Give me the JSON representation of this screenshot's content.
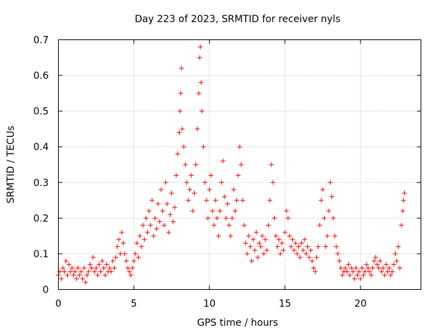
{
  "chart_data": {
    "type": "scatter",
    "title": "Day 223 of 2023, SRMTID for receiver nyls",
    "xlabel": "GPS time / hours",
    "ylabel": "SRMTID / TECUs",
    "xlim": [
      0,
      24
    ],
    "ylim": [
      0,
      0.7
    ],
    "xticks": [
      0,
      5,
      10,
      15,
      20
    ],
    "yticks": [
      0,
      0.1,
      0.2,
      0.3,
      0.4,
      0.5,
      0.6,
      0.7
    ],
    "xtick_labels": [
      "0",
      "5",
      "10",
      "15",
      "20"
    ],
    "ytick_labels": [
      "0",
      "0.1",
      "0.2",
      "0.3",
      "0.4",
      "0.5",
      "0.6",
      "0.7"
    ],
    "grid": true,
    "marker": "+",
    "marker_color": "#ff0000",
    "series": [
      {
        "name": "SRMTID",
        "points": [
          [
            0.0,
            0.04
          ],
          [
            0.1,
            0.05
          ],
          [
            0.2,
            0.03
          ],
          [
            0.3,
            0.06
          ],
          [
            0.4,
            0.05
          ],
          [
            0.5,
            0.08
          ],
          [
            0.6,
            0.04
          ],
          [
            0.7,
            0.07
          ],
          [
            0.8,
            0.05
          ],
          [
            0.9,
            0.06
          ],
          [
            1.0,
            0.04
          ],
          [
            1.1,
            0.05
          ],
          [
            1.2,
            0.03
          ],
          [
            1.3,
            0.06
          ],
          [
            1.4,
            0.04
          ],
          [
            1.5,
            0.05
          ],
          [
            1.6,
            0.03
          ],
          [
            1.7,
            0.06
          ],
          [
            1.8,
            0.02
          ],
          [
            1.9,
            0.04
          ],
          [
            2.0,
            0.05
          ],
          [
            2.1,
            0.07
          ],
          [
            2.2,
            0.06
          ],
          [
            2.3,
            0.09
          ],
          [
            2.4,
            0.05
          ],
          [
            2.5,
            0.06
          ],
          [
            2.6,
            0.04
          ],
          [
            2.7,
            0.07
          ],
          [
            2.8,
            0.05
          ],
          [
            2.9,
            0.08
          ],
          [
            3.0,
            0.06
          ],
          [
            3.1,
            0.04
          ],
          [
            3.2,
            0.07
          ],
          [
            3.3,
            0.05
          ],
          [
            3.4,
            0.06
          ],
          [
            3.5,
            0.05
          ],
          [
            3.6,
            0.08
          ],
          [
            3.7,
            0.06
          ],
          [
            3.8,
            0.09
          ],
          [
            3.9,
            0.12
          ],
          [
            4.0,
            0.14
          ],
          [
            4.1,
            0.1
          ],
          [
            4.2,
            0.16
          ],
          [
            4.3,
            0.13
          ],
          [
            4.4,
            0.1
          ],
          [
            4.5,
            0.08
          ],
          [
            4.6,
            0.06
          ],
          [
            4.7,
            0.05
          ],
          [
            4.8,
            0.04
          ],
          [
            4.9,
            0.06
          ],
          [
            5.0,
            0.08
          ],
          [
            5.1,
            0.1
          ],
          [
            5.2,
            0.13
          ],
          [
            5.3,
            0.09
          ],
          [
            5.4,
            0.15
          ],
          [
            5.5,
            0.12
          ],
          [
            5.6,
            0.18
          ],
          [
            5.7,
            0.14
          ],
          [
            5.8,
            0.2
          ],
          [
            5.9,
            0.16
          ],
          [
            6.0,
            0.22
          ],
          [
            6.1,
            0.18
          ],
          [
            6.2,
            0.25
          ],
          [
            6.3,
            0.15
          ],
          [
            6.4,
            0.2
          ],
          [
            6.5,
            0.17
          ],
          [
            6.6,
            0.24
          ],
          [
            6.7,
            0.19
          ],
          [
            6.8,
            0.28
          ],
          [
            6.9,
            0.22
          ],
          [
            7.0,
            0.18
          ],
          [
            7.1,
            0.3
          ],
          [
            7.2,
            0.24
          ],
          [
            7.3,
            0.16
          ],
          [
            7.4,
            0.21
          ],
          [
            7.5,
            0.27
          ],
          [
            7.6,
            0.19
          ],
          [
            7.7,
            0.23
          ],
          [
            7.8,
            0.32
          ],
          [
            7.9,
            0.38
          ],
          [
            8.0,
            0.44
          ],
          [
            8.05,
            0.5
          ],
          [
            8.1,
            0.55
          ],
          [
            8.15,
            0.62
          ],
          [
            8.2,
            0.45
          ],
          [
            8.3,
            0.4
          ],
          [
            8.4,
            0.35
          ],
          [
            8.5,
            0.3
          ],
          [
            8.6,
            0.25
          ],
          [
            8.7,
            0.28
          ],
          [
            8.8,
            0.32
          ],
          [
            8.9,
            0.22
          ],
          [
            9.0,
            0.27
          ],
          [
            9.1,
            0.35
          ],
          [
            9.2,
            0.45
          ],
          [
            9.3,
            0.55
          ],
          [
            9.35,
            0.65
          ],
          [
            9.4,
            0.68
          ],
          [
            9.45,
            0.58
          ],
          [
            9.5,
            0.5
          ],
          [
            9.6,
            0.4
          ],
          [
            9.7,
            0.3
          ],
          [
            9.8,
            0.25
          ],
          [
            9.9,
            0.2
          ],
          [
            10.0,
            0.28
          ],
          [
            10.1,
            0.32
          ],
          [
            10.2,
            0.22
          ],
          [
            10.3,
            0.18
          ],
          [
            10.4,
            0.25
          ],
          [
            10.5,
            0.2
          ],
          [
            10.6,
            0.15
          ],
          [
            10.7,
            0.22
          ],
          [
            10.8,
            0.3
          ],
          [
            10.9,
            0.36
          ],
          [
            11.0,
            0.26
          ],
          [
            11.1,
            0.2
          ],
          [
            11.2,
            0.24
          ],
          [
            11.3,
            0.18
          ],
          [
            11.4,
            0.15
          ],
          [
            11.5,
            0.2
          ],
          [
            11.6,
            0.28
          ],
          [
            11.7,
            0.22
          ],
          [
            11.8,
            0.25
          ],
          [
            11.9,
            0.32
          ],
          [
            12.0,
            0.4
          ],
          [
            12.1,
            0.35
          ],
          [
            12.2,
            0.25
          ],
          [
            12.3,
            0.18
          ],
          [
            12.4,
            0.13
          ],
          [
            12.5,
            0.1
          ],
          [
            12.6,
            0.15
          ],
          [
            12.7,
            0.12
          ],
          [
            12.8,
            0.08
          ],
          [
            12.9,
            0.14
          ],
          [
            13.0,
            0.11
          ],
          [
            13.1,
            0.16
          ],
          [
            13.2,
            0.09
          ],
          [
            13.3,
            0.13
          ],
          [
            13.4,
            0.12
          ],
          [
            13.5,
            0.15
          ],
          [
            13.6,
            0.1
          ],
          [
            13.7,
            0.14
          ],
          [
            13.8,
            0.11
          ],
          [
            13.9,
            0.18
          ],
          [
            14.0,
            0.25
          ],
          [
            14.1,
            0.35
          ],
          [
            14.2,
            0.3
          ],
          [
            14.3,
            0.2
          ],
          [
            14.4,
            0.15
          ],
          [
            14.5,
            0.12
          ],
          [
            14.6,
            0.14
          ],
          [
            14.7,
            0.1
          ],
          [
            14.8,
            0.13
          ],
          [
            14.9,
            0.11
          ],
          [
            15.0,
            0.16
          ],
          [
            15.1,
            0.22
          ],
          [
            15.2,
            0.2
          ],
          [
            15.3,
            0.15
          ],
          [
            15.4,
            0.12
          ],
          [
            15.5,
            0.14
          ],
          [
            15.6,
            0.11
          ],
          [
            15.7,
            0.13
          ],
          [
            15.8,
            0.1
          ],
          [
            15.9,
            0.12
          ],
          [
            16.0,
            0.09
          ],
          [
            16.1,
            0.13
          ],
          [
            16.2,
            0.11
          ],
          [
            16.3,
            0.14
          ],
          [
            16.4,
            0.1
          ],
          [
            16.5,
            0.12
          ],
          [
            16.6,
            0.09
          ],
          [
            16.7,
            0.11
          ],
          [
            16.8,
            0.08
          ],
          [
            16.9,
            0.06
          ],
          [
            17.0,
            0.05
          ],
          [
            17.1,
            0.09
          ],
          [
            17.2,
            0.12
          ],
          [
            17.3,
            0.18
          ],
          [
            17.4,
            0.25
          ],
          [
            17.5,
            0.28
          ],
          [
            17.6,
            0.2
          ],
          [
            17.7,
            0.12
          ],
          [
            17.8,
            0.15
          ],
          [
            17.9,
            0.22
          ],
          [
            18.0,
            0.3
          ],
          [
            18.1,
            0.26
          ],
          [
            18.2,
            0.2
          ],
          [
            18.3,
            0.15
          ],
          [
            18.4,
            0.12
          ],
          [
            18.5,
            0.1
          ],
          [
            18.6,
            0.08
          ],
          [
            18.7,
            0.06
          ],
          [
            18.8,
            0.04
          ],
          [
            18.9,
            0.05
          ],
          [
            19.0,
            0.06
          ],
          [
            19.1,
            0.05
          ],
          [
            19.2,
            0.07
          ],
          [
            19.3,
            0.04
          ],
          [
            19.4,
            0.06
          ],
          [
            19.5,
            0.05
          ],
          [
            19.6,
            0.03
          ],
          [
            19.7,
            0.06
          ],
          [
            19.8,
            0.04
          ],
          [
            19.9,
            0.05
          ],
          [
            20.0,
            0.03
          ],
          [
            20.1,
            0.06
          ],
          [
            20.2,
            0.04
          ],
          [
            20.3,
            0.05
          ],
          [
            20.4,
            0.07
          ],
          [
            20.5,
            0.06
          ],
          [
            20.6,
            0.05
          ],
          [
            20.7,
            0.04
          ],
          [
            20.8,
            0.06
          ],
          [
            20.9,
            0.08
          ],
          [
            21.0,
            0.09
          ],
          [
            21.1,
            0.07
          ],
          [
            21.2,
            0.06
          ],
          [
            21.3,
            0.08
          ],
          [
            21.4,
            0.05
          ],
          [
            21.5,
            0.06
          ],
          [
            21.6,
            0.04
          ],
          [
            21.7,
            0.07
          ],
          [
            21.8,
            0.05
          ],
          [
            21.9,
            0.06
          ],
          [
            22.0,
            0.04
          ],
          [
            22.1,
            0.05
          ],
          [
            22.2,
            0.07
          ],
          [
            22.3,
            0.1
          ],
          [
            22.4,
            0.08
          ],
          [
            22.5,
            0.12
          ],
          [
            22.6,
            0.06
          ],
          [
            22.7,
            0.18
          ],
          [
            22.8,
            0.22
          ],
          [
            22.85,
            0.25
          ],
          [
            22.9,
            0.27
          ]
        ]
      }
    ]
  }
}
